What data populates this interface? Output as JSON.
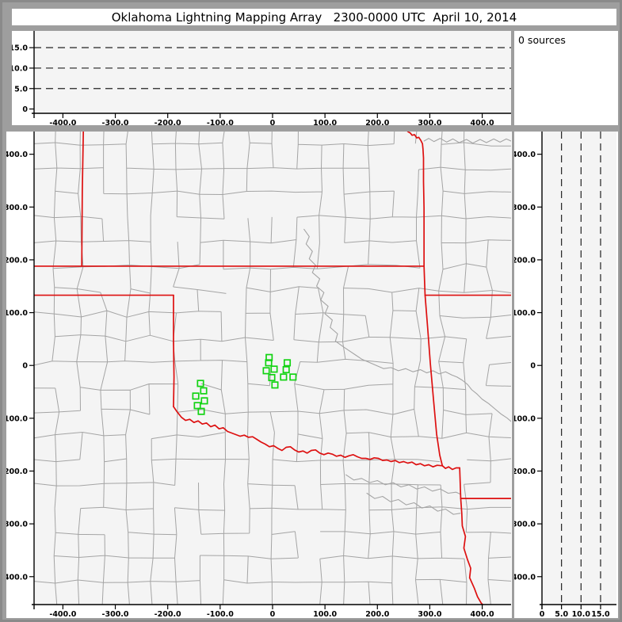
{
  "window": {
    "title": "Oklahoma Lightning Mapping Array   2300-0000 UTC  April 10, 2014"
  },
  "status": {
    "sources_label": "0 sources",
    "sources_count": 0
  },
  "colors": {
    "frame": "#9e9e9e",
    "panel": "#ffffff",
    "plot_bg": "#f4f4f4",
    "axis": "#000000",
    "dash": "#222222",
    "county": "#a4a4a4",
    "river": "#a4a4a4",
    "state_border": "#dd1010",
    "source": "#12d312"
  },
  "axes": {
    "km_ticks": [
      {
        "v": -400,
        "t": "-400.0"
      },
      {
        "v": -300,
        "t": "-300.0"
      },
      {
        "v": -200,
        "t": "-200.0"
      },
      {
        "v": -100,
        "t": "-100.0"
      },
      {
        "v": 0,
        "t": "0"
      },
      {
        "v": 100,
        "t": "100.0"
      },
      {
        "v": 200,
        "t": "200.0"
      },
      {
        "v": 300,
        "t": "300.0"
      },
      {
        "v": 400,
        "t": "400.0"
      }
    ],
    "alt_ticks": [
      {
        "v": 0,
        "t": "0"
      },
      {
        "v": 5,
        "t": "5.0"
      },
      {
        "v": 10,
        "t": "10.0"
      },
      {
        "v": 15,
        "t": "15.0"
      }
    ],
    "alt_dashes": [
      5,
      10,
      15
    ]
  },
  "chart_data": [
    {
      "type": "scatter",
      "name": "altitude-vs-east-west",
      "x_range_km": [
        -455,
        455
      ],
      "y_range_km_alt": [
        -1.1,
        19.1
      ],
      "x_tick_values": [
        -400,
        -300,
        -200,
        -100,
        0,
        100,
        200,
        300,
        400
      ],
      "y_tick_values": [
        0,
        5,
        10,
        15
      ],
      "dashed_altitudes_km": [
        5,
        10,
        15
      ],
      "points": []
    },
    {
      "type": "map-scatter",
      "name": "plan-view-map",
      "x_range_km": [
        -455,
        455
      ],
      "y_range_km": [
        -453,
        443
      ],
      "x_tick_values": [
        -400,
        -300,
        -200,
        -100,
        0,
        100,
        200,
        300,
        400
      ],
      "y_tick_values": [
        -400,
        -300,
        -200,
        -100,
        0,
        100,
        200,
        300,
        400
      ],
      "county_grid": {
        "step_km": 46,
        "jitter_km": 7,
        "skip_fraction": 0.22,
        "seed": 11,
        "regular_bands": {
          "north_of": 192,
          "south_of": -140,
          "jitter_scale": 0.5
        }
      },
      "state_borders_km": [
        [
          [
            -361,
            443
          ],
          [
            -363,
            330
          ],
          [
            -364,
            188
          ]
        ],
        [
          [
            -455,
            188
          ],
          [
            289,
            188
          ]
        ],
        [
          [
            258,
            443
          ],
          [
            263,
            440
          ],
          [
            266,
            436
          ],
          [
            271,
            437
          ],
          [
            275,
            431
          ],
          [
            279,
            432
          ],
          [
            283,
            426
          ],
          [
            286,
            420
          ],
          [
            287,
            410
          ],
          [
            288,
            393
          ],
          [
            288,
            348
          ],
          [
            289,
            298
          ],
          [
            289,
            248
          ],
          [
            289,
            188
          ]
        ],
        [
          [
            289,
            188
          ],
          [
            290,
            160
          ],
          [
            291,
            133
          ]
        ],
        [
          [
            291,
            133
          ],
          [
            455,
            133
          ]
        ],
        [
          [
            291,
            133
          ],
          [
            296,
            70
          ],
          [
            301,
            4
          ],
          [
            307,
            -64
          ],
          [
            313,
            -130
          ],
          [
            319,
            -170
          ],
          [
            324,
            -190
          ]
        ],
        [
          [
            -455,
            133
          ],
          [
            -189,
            133
          ]
        ],
        [
          [
            -189,
            133
          ],
          [
            -189,
            48
          ],
          [
            -188,
            -22
          ],
          [
            -189,
            -78
          ]
        ],
        [
          [
            -189,
            -78
          ],
          [
            -182,
            -88
          ],
          [
            -174,
            -98
          ],
          [
            -166,
            -104
          ],
          [
            -158,
            -102
          ],
          [
            -150,
            -108
          ],
          [
            -142,
            -105
          ],
          [
            -134,
            -111
          ],
          [
            -126,
            -109
          ],
          [
            -118,
            -116
          ],
          [
            -110,
            -113
          ],
          [
            -102,
            -120
          ],
          [
            -94,
            -118
          ],
          [
            -86,
            -125
          ],
          [
            -78,
            -128
          ],
          [
            -70,
            -131
          ],
          [
            -62,
            -134
          ],
          [
            -54,
            -132
          ],
          [
            -46,
            -136
          ],
          [
            -38,
            -135
          ],
          [
            -30,
            -140
          ],
          [
            -22,
            -145
          ],
          [
            -14,
            -149
          ],
          [
            -6,
            -154
          ],
          [
            2,
            -152
          ],
          [
            10,
            -157
          ],
          [
            18,
            -161
          ],
          [
            26,
            -155
          ],
          [
            34,
            -154
          ],
          [
            42,
            -160
          ],
          [
            50,
            -164
          ],
          [
            58,
            -162
          ],
          [
            66,
            -166
          ],
          [
            74,
            -161
          ],
          [
            82,
            -160
          ],
          [
            90,
            -166
          ],
          [
            98,
            -169
          ],
          [
            106,
            -166
          ],
          [
            114,
            -168
          ],
          [
            122,
            -172
          ],
          [
            130,
            -170
          ],
          [
            138,
            -174
          ],
          [
            146,
            -171
          ],
          [
            154,
            -169
          ],
          [
            162,
            -173
          ],
          [
            170,
            -176
          ],
          [
            178,
            -176
          ],
          [
            186,
            -178
          ],
          [
            194,
            -175
          ],
          [
            202,
            -176
          ],
          [
            210,
            -180
          ],
          [
            218,
            -179
          ],
          [
            226,
            -182
          ],
          [
            234,
            -180
          ],
          [
            242,
            -184
          ],
          [
            250,
            -182
          ],
          [
            258,
            -185
          ],
          [
            266,
            -183
          ],
          [
            274,
            -188
          ],
          [
            282,
            -186
          ],
          [
            290,
            -190
          ],
          [
            298,
            -188
          ],
          [
            306,
            -192
          ],
          [
            314,
            -189
          ],
          [
            324,
            -190
          ]
        ],
        [
          [
            324,
            -190
          ],
          [
            330,
            -195
          ],
          [
            336,
            -192
          ],
          [
            343,
            -197
          ],
          [
            350,
            -194
          ],
          [
            357,
            -194
          ]
        ],
        [
          [
            357,
            -194
          ],
          [
            358,
            -222
          ],
          [
            359,
            -252
          ]
        ],
        [
          [
            359,
            -252
          ],
          [
            455,
            -252
          ]
        ],
        [
          [
            359,
            -252
          ],
          [
            361,
            -280
          ],
          [
            362,
            -304
          ],
          [
            368,
            -324
          ],
          [
            365,
            -346
          ],
          [
            372,
            -368
          ],
          [
            378,
            -384
          ],
          [
            376,
            -402
          ],
          [
            385,
            -422
          ],
          [
            391,
            -438
          ],
          [
            398,
            -450
          ],
          [
            401,
            -453
          ]
        ]
      ],
      "rivers_km": [
        [
          [
            289,
            425
          ],
          [
            298,
            430
          ],
          [
            308,
            424
          ],
          [
            320,
            430
          ],
          [
            332,
            423
          ],
          [
            344,
            429
          ],
          [
            356,
            422
          ],
          [
            370,
            428
          ],
          [
            382,
            421
          ],
          [
            396,
            428
          ],
          [
            408,
            422
          ],
          [
            422,
            429
          ],
          [
            434,
            423
          ],
          [
            446,
            429
          ],
          [
            455,
            425
          ]
        ],
        [
          [
            60,
            258
          ],
          [
            70,
            244
          ],
          [
            64,
            230
          ],
          [
            76,
            216
          ],
          [
            70,
            202
          ],
          [
            82,
            190
          ],
          [
            76,
            176
          ],
          [
            90,
            164
          ],
          [
            84,
            150
          ],
          [
            98,
            138
          ],
          [
            92,
            124
          ],
          [
            106,
            112
          ],
          [
            100,
            98
          ],
          [
            114,
            86
          ],
          [
            110,
            72
          ],
          [
            124,
            60
          ],
          [
            120,
            46
          ],
          [
            134,
            36
          ],
          [
            146,
            28
          ],
          [
            158,
            20
          ],
          [
            170,
            12
          ],
          [
            184,
            6
          ],
          [
            198,
            0
          ],
          [
            212,
            -6
          ],
          [
            226,
            -4
          ],
          [
            240,
            -10
          ],
          [
            254,
            -6
          ],
          [
            268,
            -12
          ],
          [
            282,
            -8
          ],
          [
            294,
            -14
          ],
          [
            306,
            -10
          ],
          [
            318,
            -16
          ],
          [
            330,
            -12
          ],
          [
            342,
            -18
          ],
          [
            352,
            -22
          ],
          [
            362,
            -28
          ],
          [
            372,
            -36
          ],
          [
            380,
            -46
          ],
          [
            390,
            -54
          ],
          [
            400,
            -64
          ],
          [
            412,
            -72
          ],
          [
            424,
            -82
          ],
          [
            436,
            -92
          ],
          [
            448,
            -100
          ],
          [
            455,
            -106
          ]
        ],
        [
          [
            140,
            -207
          ],
          [
            155,
            -217
          ],
          [
            170,
            -214
          ],
          [
            185,
            -222
          ],
          [
            200,
            -218
          ],
          [
            215,
            -226
          ],
          [
            230,
            -222
          ],
          [
            245,
            -230
          ],
          [
            260,
            -226
          ],
          [
            275,
            -234
          ],
          [
            290,
            -230
          ],
          [
            305,
            -238
          ],
          [
            320,
            -234
          ],
          [
            335,
            -242
          ],
          [
            350,
            -240
          ],
          [
            359,
            -244
          ]
        ],
        [
          [
            180,
            -242
          ],
          [
            195,
            -252
          ],
          [
            210,
            -248
          ],
          [
            225,
            -258
          ],
          [
            240,
            -254
          ],
          [
            255,
            -264
          ],
          [
            270,
            -260
          ],
          [
            285,
            -270
          ],
          [
            300,
            -266
          ],
          [
            315,
            -276
          ],
          [
            330,
            -272
          ],
          [
            345,
            -282
          ],
          [
            358,
            -280
          ]
        ]
      ],
      "sources_km": [
        [
          -6.5,
          15
        ],
        [
          -7.5,
          5
        ],
        [
          -12,
          -10
        ],
        [
          3,
          -7
        ],
        [
          28,
          5
        ],
        [
          26,
          -8
        ],
        [
          21,
          -22
        ],
        [
          -1.5,
          -23
        ],
        [
          39,
          -22
        ],
        [
          4.5,
          -37
        ],
        [
          -137.5,
          -34
        ],
        [
          -131.5,
          -48
        ],
        [
          -146.5,
          -58
        ],
        [
          -130,
          -67
        ],
        [
          -143.5,
          -76
        ],
        [
          -136,
          -87
        ]
      ]
    },
    {
      "type": "scatter",
      "name": "altitude-vs-north-south",
      "x_range_km_alt": [
        0,
        19.05
      ],
      "y_range_km": [
        -453,
        443
      ],
      "x_tick_values": [
        0,
        5,
        10,
        15
      ],
      "y_tick_values": [
        -400,
        -300,
        -200,
        -100,
        0,
        100,
        200,
        300,
        400
      ],
      "dashed_altitudes_km": [
        5,
        10,
        15
      ],
      "points": []
    }
  ]
}
